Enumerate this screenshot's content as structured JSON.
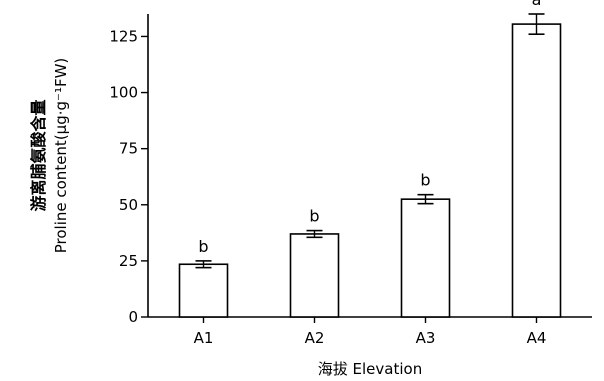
{
  "chart_data": {
    "type": "bar",
    "categories": [
      "A1",
      "A2",
      "A3",
      "A4"
    ],
    "values": [
      23.5,
      37,
      52.5,
      130.5
    ],
    "error_bars": [
      1.5,
      1.5,
      2.0,
      4.5
    ],
    "significance_letters": [
      "b",
      "b",
      "b",
      "a"
    ],
    "xlabel": "海拔 Elevation",
    "ylabel_line1": "游离脯氨酸含量",
    "ylabel_line2": "Proline content(μg·g⁻¹FW)",
    "ylim": [
      0,
      135
    ],
    "yticks": [
      0,
      25,
      50,
      75,
      100,
      125
    ],
    "bar_fill": "#ffffff",
    "bar_stroke": "#000000",
    "grid": false,
    "legend": "none"
  }
}
